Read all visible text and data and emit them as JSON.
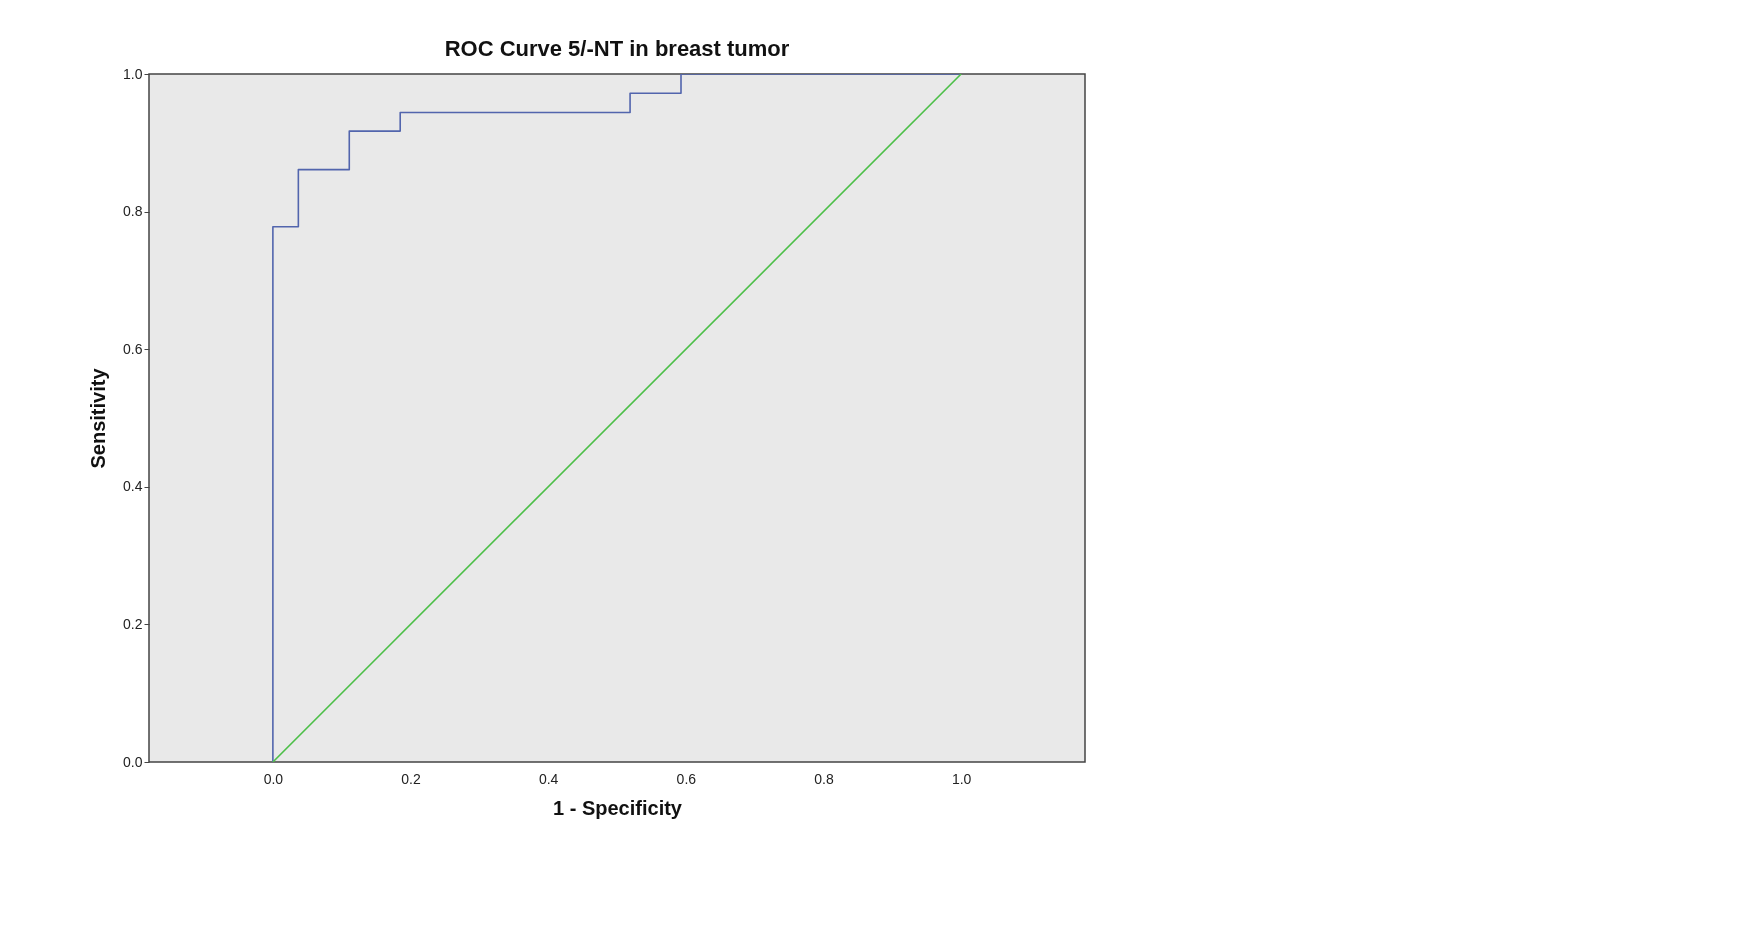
{
  "chart_data": {
    "type": "step",
    "title": "ROC Curve 5/-NT in breast tumor",
    "xlabel": "1 - Specificity",
    "ylabel": "Sensitivity",
    "series": [
      {
        "color": "#5265ad",
        "x": [
          0,
          0,
          0.037,
          0.111,
          0.185,
          0.519,
          0.593,
          1.0
        ],
        "values": [
          0,
          0.778,
          0.861,
          0.917,
          0.944,
          0.972,
          1.0,
          1.0
        ]
      },
      {
        "type": "line",
        "color": "#4cbf48",
        "x": [
          0,
          1.0
        ],
        "values": [
          0,
          1.0
        ]
      }
    ],
    "xlim": [
      -0.18,
      1.18
    ],
    "ylim": [
      0,
      1.0
    ],
    "xticks": [
      {
        "value": 0,
        "label": "0.0"
      },
      0.2,
      0.4,
      0.6,
      0.8,
      {
        "value": 1.0,
        "label": "1.0"
      }
    ],
    "yticks": [
      {
        "value": 0,
        "label": "0.0"
      },
      0.2,
      0.4,
      0.6,
      0.8,
      {
        "value": 1.0,
        "label": "1.0"
      }
    ],
    "grid": false
  }
}
